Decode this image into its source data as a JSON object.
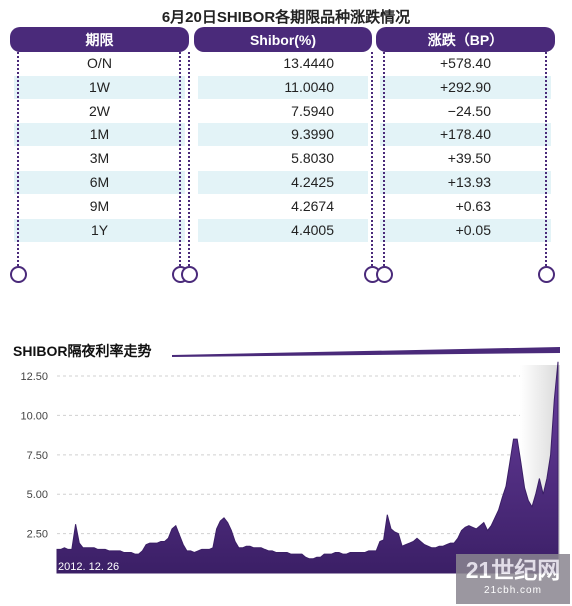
{
  "table": {
    "title": "6月20日SHIBOR各期限品种涨跌情况",
    "headers": [
      "期限",
      "Shibor(%)",
      "涨跌（BP）"
    ],
    "rows": [
      {
        "term": "O/N",
        "rate": "13.4440",
        "change": "+578.40"
      },
      {
        "term": "1W",
        "rate": "11.0040",
        "change": "+292.90"
      },
      {
        "term": "2W",
        "rate": "7.5940",
        "change": "−24.50"
      },
      {
        "term": "1M",
        "rate": "9.3990",
        "change": "+178.40"
      },
      {
        "term": "3M",
        "rate": "5.8030",
        "change": "+39.50"
      },
      {
        "term": "6M",
        "rate": "4.2425",
        "change": "+13.93"
      },
      {
        "term": "9M",
        "rate": "4.2674",
        "change": "+0.63"
      },
      {
        "term": "1Y",
        "rate": "4.4005",
        "change": "+0.05"
      }
    ]
  },
  "colors": {
    "accent": "#4a2a7a",
    "band": "#e3f3f7",
    "area": "#4a2a7a"
  },
  "watermark": {
    "logo_text": "21世纪网",
    "sub_text": "21cbh.com"
  },
  "chart_data": {
    "type": "area",
    "title": "SHIBOR隔夜利率走势",
    "xlabel": "",
    "ylabel": "",
    "start_label": "2012. 12. 26",
    "yticks": [
      "2.50",
      "5.00",
      "7.50",
      "10.00",
      "12.50"
    ],
    "ylim": [
      0,
      13.2
    ],
    "grid": "horizontal",
    "series": [
      {
        "values": [
          1.5,
          1.5,
          1.6,
          1.5,
          1.5,
          3.1,
          1.9,
          1.6,
          1.6,
          1.6,
          1.6,
          1.5,
          1.5,
          1.5,
          1.4,
          1.4,
          1.4,
          1.4,
          1.3,
          1.3,
          1.3,
          1.2,
          1.2,
          1.4,
          1.8,
          1.9,
          1.9,
          1.9,
          2.0,
          2.0,
          2.2,
          2.8,
          3.0,
          2.4,
          1.8,
          1.4,
          1.4,
          1.3,
          1.4,
          1.5,
          1.5,
          1.5,
          1.6,
          2.8,
          3.3,
          3.5,
          3.2,
          2.7,
          2.0,
          1.6,
          1.6,
          1.7,
          1.7,
          1.6,
          1.6,
          1.6,
          1.5,
          1.4,
          1.4,
          1.3,
          1.3,
          1.3,
          1.3,
          1.2,
          1.2,
          1.2,
          1.2,
          1.0,
          0.9,
          0.9,
          1.0,
          1.0,
          1.2,
          1.2,
          1.2,
          1.3,
          1.3,
          1.2,
          1.2,
          1.3,
          1.3,
          1.3,
          1.3,
          1.3,
          1.4,
          1.4,
          1.4,
          2.0,
          2.1,
          3.7,
          2.8,
          2.6,
          2.5,
          1.7,
          1.8,
          1.9,
          2.0,
          2.2,
          2.0,
          1.8,
          1.7,
          1.6,
          1.6,
          1.7,
          1.7,
          1.8,
          1.9,
          1.9,
          2.2,
          2.7,
          2.9,
          3.0,
          2.9,
          2.8,
          3.0,
          3.2,
          2.7,
          3.0,
          3.5,
          4.0,
          4.8,
          5.5,
          7.0,
          8.5,
          8.5,
          7.0,
          5.4,
          4.6,
          4.2,
          5.0,
          6.0,
          5.0,
          6.0,
          7.5,
          11.0,
          13.4
        ]
      }
    ]
  }
}
